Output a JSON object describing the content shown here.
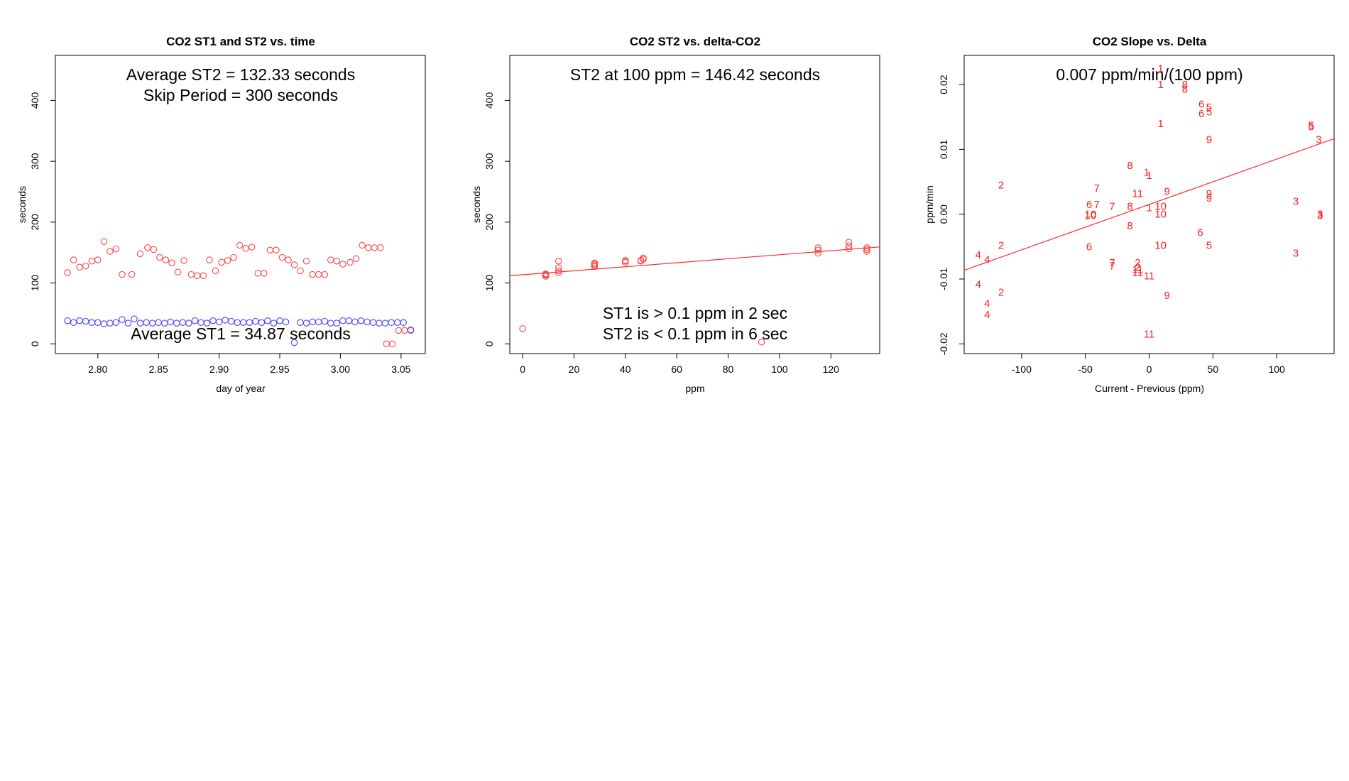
{
  "colors": {
    "st2": "#ff2a2a",
    "st1": "#4444ff",
    "axis": "#000000",
    "text": "#000000"
  },
  "chart_data": [
    {
      "type": "scatter",
      "title": "CO2 ST1 and ST2 vs. time",
      "xlabel": "day of year",
      "ylabel": "seconds",
      "xlim": [
        2.765,
        3.07
      ],
      "ylim": [
        -16,
        474
      ],
      "xticks": [
        "2.80",
        "2.85",
        "2.90",
        "2.95",
        "3.00",
        "3.05"
      ],
      "yticks": [
        "0",
        "100",
        "200",
        "300",
        "400"
      ],
      "annotations": [
        "Average ST2 =  132.33  seconds",
        "Skip Period =  300  seconds",
        "Average ST1 =  34.87  seconds"
      ],
      "series": [
        {
          "color": "#ff4444",
          "x": [
            2.775,
            2.78,
            2.785,
            2.79,
            2.795,
            2.8,
            2.805,
            2.81,
            2.815,
            2.82,
            2.828,
            2.835,
            2.841,
            2.846,
            2.851,
            2.856,
            2.861,
            2.866,
            2.871,
            2.877,
            2.882,
            2.887,
            2.892,
            2.897,
            2.902,
            2.907,
            2.912,
            2.917,
            2.922,
            2.927,
            2.932,
            2.937,
            2.942,
            2.947,
            2.952,
            2.957,
            2.962,
            2.967,
            2.972,
            2.977,
            2.982,
            2.987,
            2.992,
            2.997,
            3.002,
            3.008,
            3.013,
            3.018,
            3.023,
            3.028,
            3.033,
            3.038,
            3.043,
            3.048,
            3.053,
            3.058
          ],
          "y": [
            117,
            138,
            126,
            128,
            136,
            138,
            168,
            152,
            156,
            114,
            114,
            148,
            158,
            155,
            142,
            138,
            133,
            118,
            137,
            114,
            112,
            112,
            138,
            120,
            134,
            137,
            142,
            162,
            157,
            159,
            116,
            116,
            154,
            154,
            142,
            138,
            130,
            120,
            136,
            114,
            114,
            114,
            138,
            136,
            131,
            134,
            140,
            162,
            158,
            158,
            158,
            0,
            0,
            22,
            22,
            22
          ]
        },
        {
          "color": "#4444ff",
          "x": [
            2.775,
            2.78,
            2.785,
            2.79,
            2.795,
            2.8,
            2.805,
            2.81,
            2.815,
            2.82,
            2.825,
            2.83,
            2.835,
            2.84,
            2.845,
            2.85,
            2.855,
            2.86,
            2.865,
            2.87,
            2.875,
            2.88,
            2.885,
            2.89,
            2.895,
            2.9,
            2.905,
            2.91,
            2.915,
            2.92,
            2.925,
            2.93,
            2.935,
            2.94,
            2.945,
            2.95,
            2.955,
            2.962,
            2.967,
            2.972,
            2.977,
            2.982,
            2.987,
            2.992,
            2.997,
            3.002,
            3.007,
            3.012,
            3.017,
            3.022,
            3.027,
            3.032,
            3.037,
            3.042,
            3.047,
            3.052,
            3.058
          ],
          "y": [
            38,
            35,
            38,
            37,
            35,
            35,
            33,
            34,
            35,
            40,
            34,
            41,
            34,
            35,
            34,
            35,
            34,
            36,
            34,
            35,
            34,
            38,
            35,
            34,
            38,
            36,
            39,
            37,
            35,
            35,
            35,
            37,
            35,
            38,
            34,
            38,
            36,
            2,
            35,
            34,
            36,
            36,
            37,
            34,
            34,
            38,
            38,
            36,
            38,
            36,
            35,
            34,
            34,
            35,
            35,
            35,
            23
          ]
        }
      ]
    },
    {
      "type": "scatter",
      "title": "CO2 ST2 vs. delta-CO2",
      "xlabel": "ppm",
      "ylabel": "seconds",
      "xlim": [
        -5,
        139
      ],
      "ylim": [
        -16,
        474
      ],
      "xticks": [
        "0",
        "20",
        "40",
        "60",
        "80",
        "100",
        "120"
      ],
      "yticks": [
        "0",
        "100",
        "200",
        "300",
        "400"
      ],
      "annotations": [
        "ST2 at 100 ppm =  146.42  seconds",
        "ST1 is > 0.1 ppm in 2 sec",
        "ST2 is < 0.1 ppm in 6 sec"
      ],
      "fit": {
        "intercept": 113.5,
        "slope": 0.329
      },
      "series": [
        {
          "color": "#ff4444",
          "x": [
            0,
            9,
            9,
            9,
            9,
            14,
            14,
            14,
            14,
            28,
            28,
            28,
            28,
            40,
            40,
            40,
            46,
            46,
            47,
            47,
            93,
            115,
            115,
            115,
            127,
            127,
            127,
            134,
            134,
            134
          ],
          "y": [
            25,
            111,
            113,
            114,
            115,
            117,
            120,
            125,
            136,
            127,
            129,
            131,
            133,
            134,
            136,
            137,
            136,
            137,
            139,
            141,
            3,
            149,
            154,
            158,
            156,
            161,
            167,
            152,
            155,
            158
          ]
        }
      ]
    },
    {
      "type": "scatter",
      "title": "CO2 Slope vs. Delta",
      "xlabel": "Current - Previous (ppm)",
      "ylabel": "ppm/min",
      "xlim": [
        -145,
        145
      ],
      "ylim": [
        -0.0215,
        0.0245
      ],
      "xticks": [
        "-100",
        "-50",
        "0",
        "50",
        "100"
      ],
      "yticks": [
        "-0.02",
        "-0.01",
        "0.00",
        "0.01",
        "0.02"
      ],
      "annotations": [
        "0.007  ppm/min/(100 ppm)"
      ],
      "fit": {
        "intercept": 0.0015,
        "slope": 7e-05
      },
      "points": [
        {
          "x": 9,
          "y": 0.0225,
          "label": "1"
        },
        {
          "x": 9,
          "y": 0.02,
          "label": "1"
        },
        {
          "x": 9,
          "y": 0.014,
          "label": "1"
        },
        {
          "x": -2,
          "y": 0.0065,
          "label": "1"
        },
        {
          "x": 0,
          "y": 0.006,
          "label": "1"
        },
        {
          "x": 0,
          "y": 0.001,
          "label": "1"
        },
        {
          "x": -116,
          "y": 0.0045,
          "label": "2"
        },
        {
          "x": -116,
          "y": -0.0048,
          "label": "2"
        },
        {
          "x": -116,
          "y": -0.012,
          "label": "2"
        },
        {
          "x": -9,
          "y": -0.0075,
          "label": "2"
        },
        {
          "x": -9,
          "y": -0.0082,
          "label": "2"
        },
        {
          "x": 115,
          "y": 0.002,
          "label": "3"
        },
        {
          "x": 115,
          "y": -0.006,
          "label": "3"
        },
        {
          "x": 133,
          "y": 0.0115,
          "label": "3"
        },
        {
          "x": 134,
          "y": 0.0,
          "label": "3"
        },
        {
          "x": 134,
          "y": -0.0002,
          "label": "3"
        },
        {
          "x": -134,
          "y": -0.0063,
          "label": "4"
        },
        {
          "x": -127,
          "y": -0.007,
          "label": "4"
        },
        {
          "x": -134,
          "y": -0.0108,
          "label": "4"
        },
        {
          "x": -127,
          "y": -0.0138,
          "label": "4"
        },
        {
          "x": -127,
          "y": -0.0155,
          "label": "4"
        },
        {
          "x": 47,
          "y": 0.0165,
          "label": "5"
        },
        {
          "x": 47,
          "y": 0.0158,
          "label": "5"
        },
        {
          "x": 127,
          "y": 0.0135,
          "label": "5"
        },
        {
          "x": 127,
          "y": 0.0137,
          "label": "5"
        },
        {
          "x": 47,
          "y": -0.0048,
          "label": "5"
        },
        {
          "x": 41,
          "y": 0.017,
          "label": "6"
        },
        {
          "x": 41,
          "y": 0.0155,
          "label": "6"
        },
        {
          "x": -47,
          "y": 0.0015,
          "label": "6"
        },
        {
          "x": -47,
          "y": -0.005,
          "label": "6"
        },
        {
          "x": 40,
          "y": -0.0028,
          "label": "6"
        },
        {
          "x": -41,
          "y": 0.004,
          "label": "7"
        },
        {
          "x": -41,
          "y": 0.0015,
          "label": "7"
        },
        {
          "x": -29,
          "y": 0.0012,
          "label": "7"
        },
        {
          "x": -29,
          "y": -0.0075,
          "label": "7"
        },
        {
          "x": -29,
          "y": -0.008,
          "label": "7"
        },
        {
          "x": 28,
          "y": 0.02,
          "label": "8"
        },
        {
          "x": 28,
          "y": 0.0193,
          "label": "8"
        },
        {
          "x": -15,
          "y": 0.0075,
          "label": "8"
        },
        {
          "x": -15,
          "y": 0.0012,
          "label": "8"
        },
        {
          "x": -15,
          "y": -0.0018,
          "label": "8"
        },
        {
          "x": 47,
          "y": 0.0115,
          "label": "9"
        },
        {
          "x": 14,
          "y": 0.0035,
          "label": "9"
        },
        {
          "x": 47,
          "y": 0.0032,
          "label": "9"
        },
        {
          "x": 47,
          "y": 0.0025,
          "label": "9"
        },
        {
          "x": 14,
          "y": -0.0125,
          "label": "9"
        },
        {
          "x": -46,
          "y": 0.0,
          "label": "10"
        },
        {
          "x": -46,
          "y": -0.0002,
          "label": "10"
        },
        {
          "x": 9,
          "y": 0.0012,
          "label": "10"
        },
        {
          "x": 9,
          "y": 0.0,
          "label": "10"
        },
        {
          "x": 9,
          "y": -0.0048,
          "label": "10"
        },
        {
          "x": -9,
          "y": 0.0032,
          "label": "11"
        },
        {
          "x": -9,
          "y": -0.0085,
          "label": "11"
        },
        {
          "x": 0,
          "y": -0.0095,
          "label": "11"
        },
        {
          "x": -9,
          "y": -0.009,
          "label": "11"
        },
        {
          "x": 0,
          "y": -0.0185,
          "label": "11"
        }
      ]
    }
  ]
}
